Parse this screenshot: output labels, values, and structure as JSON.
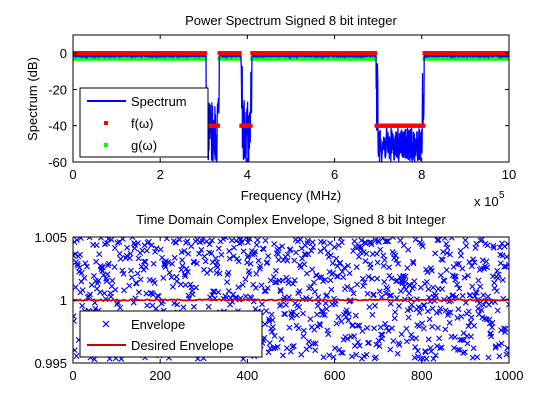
{
  "chart_data": [
    {
      "type": "line",
      "title": "Power Spectrum Signed 8 bit integer",
      "xlabel": "Frequency (MHz)",
      "ylabel": "Spectrum (dB)",
      "x_exponent": "x 10",
      "x_exponent_power": "5",
      "xlim": [
        0,
        10
      ],
      "ylim": [
        -60,
        10
      ],
      "xticks": [
        "0",
        "2",
        "4",
        "6",
        "8",
        "10"
      ],
      "yticks": [
        "-60",
        "-40",
        "-20",
        "0"
      ],
      "xtick_values": [
        0,
        2,
        4,
        6,
        8,
        10
      ],
      "ytick_values": [
        -60,
        -40,
        -20,
        0
      ],
      "grid": false,
      "legend_position": "bottom-left",
      "series": [
        {
          "name": "Spectrum",
          "style": "line",
          "color": "#0000ff"
        },
        {
          "name": "f(ω)",
          "style": "dot",
          "color": "#ff0000"
        },
        {
          "name": "g(ω)",
          "style": "dot",
          "color": "#00ff00"
        }
      ],
      "segments": [
        {
          "x_start": 0.0,
          "x_end": 3.05,
          "f": 0,
          "g": -3
        },
        {
          "x_start": 3.05,
          "x_end": 3.35,
          "f": -40,
          "g": -40
        },
        {
          "x_start": 3.35,
          "x_end": 3.85,
          "f": 0,
          "g": -3
        },
        {
          "x_start": 3.85,
          "x_end": 4.1,
          "f": -40,
          "g": -40
        },
        {
          "x_start": 4.1,
          "x_end": 6.95,
          "f": 0,
          "g": -3
        },
        {
          "x_start": 6.95,
          "x_end": 8.05,
          "f": -40,
          "g": -40
        },
        {
          "x_start": 8.05,
          "x_end": 10.0,
          "f": 0,
          "g": -3
        }
      ]
    },
    {
      "type": "scatter",
      "title": "Time Domain Complex Envelope, Signed 8 bit Integer",
      "xlabel": "",
      "ylabel": "",
      "xlim": [
        0,
        1000
      ],
      "ylim": [
        0.995,
        1.005
      ],
      "xticks": [
        "0",
        "200",
        "400",
        "600",
        "800",
        "1000"
      ],
      "yticks": [
        "0.995",
        "1",
        "1.005"
      ],
      "xtick_values": [
        0,
        200,
        400,
        600,
        800,
        1000
      ],
      "ytick_values": [
        0.995,
        1.0,
        1.005
      ],
      "grid": false,
      "legend_position": "bottom-left",
      "series": [
        {
          "name": "Envelope",
          "style": "x-marker",
          "color": "#0000ff",
          "n_points": 1000,
          "y_min": 0.9953,
          "y_max": 1.005
        },
        {
          "name": "Desired Envelope",
          "style": "line",
          "color": "#cc0000",
          "y": 1.0
        }
      ]
    }
  ]
}
